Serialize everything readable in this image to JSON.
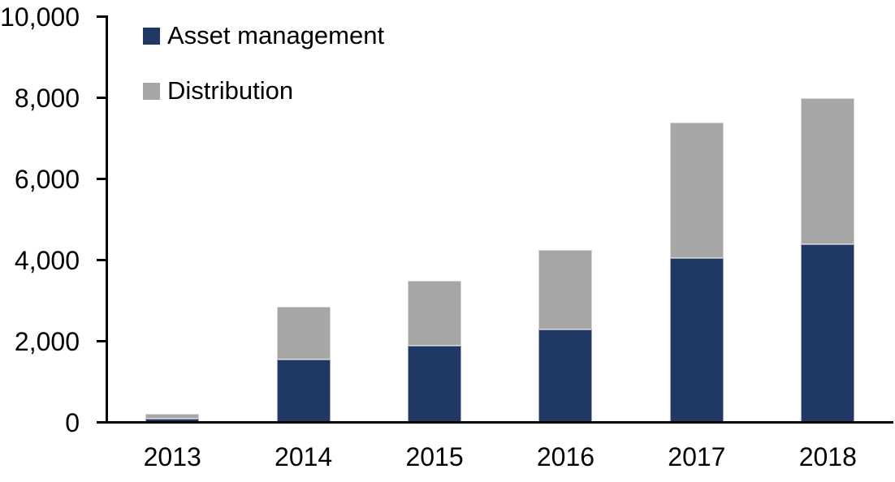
{
  "chart_data": {
    "type": "bar",
    "stacked": true,
    "title": "",
    "xlabel": "",
    "ylabel": "",
    "categories": [
      "2013",
      "2014",
      "2015",
      "2016",
      "2017",
      "2018"
    ],
    "series": [
      {
        "name": "Asset management",
        "color": "#1F3864",
        "values": [
          100,
          1550,
          1900,
          2300,
          4050,
          4400
        ]
      },
      {
        "name": "Distribution",
        "color": "#A6A6A6",
        "values": [
          120,
          1300,
          1600,
          1950,
          3350,
          3600
        ]
      }
    ],
    "ylim": [
      0,
      10000
    ],
    "y_ticks": [
      {
        "value": 0,
        "label": "0"
      },
      {
        "value": 2000,
        "label": "2,000"
      },
      {
        "value": 4000,
        "label": "4,000"
      },
      {
        "value": 6000,
        "label": "6,000"
      },
      {
        "value": 8000,
        "label": "8,000"
      },
      {
        "value": 10000,
        "label": "10,000"
      }
    ],
    "grid": false,
    "legend_position": "top-left",
    "axis_color": "#000000",
    "text_color": "#000000",
    "background": "#FFFFFF"
  }
}
